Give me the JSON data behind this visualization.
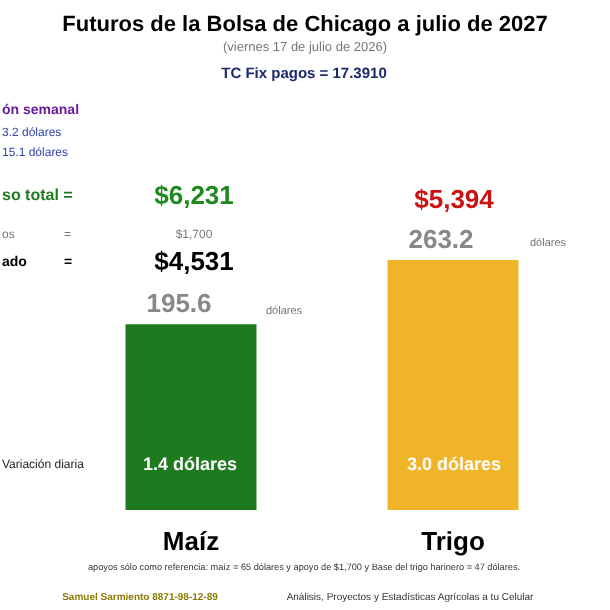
{
  "chart_data": {
    "type": "bar",
    "title": "Futuros de la Bolsa de Chicago a julio de 2027",
    "subtitle": "(viernes 17 de julio de 2026)",
    "categories": [
      "Maíz",
      "Trigo"
    ],
    "values": [
      195.6,
      263.2
    ],
    "colors": [
      "#1e7a1e",
      "#f0b429"
    ],
    "data_labels": true,
    "annotations": [
      "TC Fix pagos = 17.3910",
      "ón semanal",
      "3.2 dólares",
      "15.1 dólares",
      "so total =",
      "$6,231",
      "os",
      "=",
      "$1,700",
      "ado",
      "=",
      "$4,531",
      "$5,394",
      "Variación diaria",
      "1.4 dólares",
      "3.0 dólares",
      "apoyos sólo como referencia: maíz = 65 dólares y apoyo de $1,700 y Base del trigo harinero = 47 dólares.",
      "Samuel Sarmiento 8871-98-12-89",
      "Análisis, Proyectos y Estadísticas Agrícolas a tu Celular",
      "dólares",
      "dólares"
    ]
  }
}
